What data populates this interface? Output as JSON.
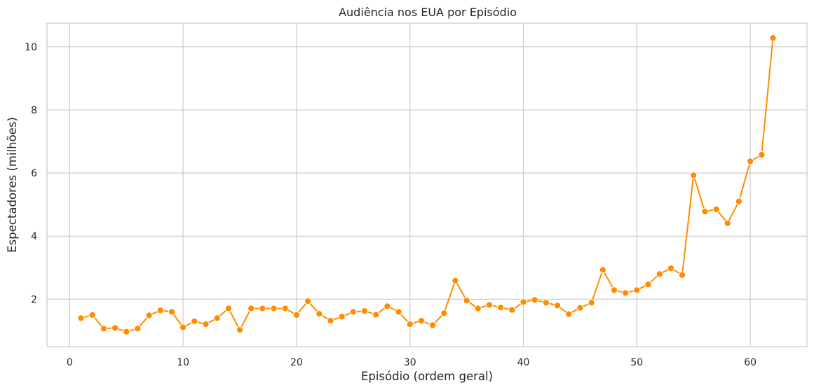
{
  "chart_data": {
    "type": "line",
    "title": "Audiência nos EUA por Episódio",
    "xlabel": "Episódio (ordem geral)",
    "ylabel": "Espectadores (milhões)",
    "xlim": [
      -2,
      65
    ],
    "ylim": [
      0.5,
      10.75
    ],
    "xticks": [
      0,
      10,
      20,
      30,
      40,
      50,
      60
    ],
    "yticks": [
      2,
      4,
      6,
      8,
      10
    ],
    "grid": true,
    "series_color": "#ff8c00",
    "x": [
      1,
      2,
      3,
      4,
      5,
      6,
      7,
      8,
      9,
      10,
      11,
      12,
      13,
      14,
      15,
      16,
      17,
      18,
      19,
      20,
      21,
      22,
      23,
      24,
      25,
      26,
      27,
      28,
      29,
      30,
      31,
      32,
      33,
      34,
      35,
      36,
      37,
      38,
      39,
      40,
      41,
      42,
      43,
      44,
      45,
      46,
      47,
      48,
      49,
      50,
      51,
      52,
      53,
      54,
      55,
      56,
      57,
      58,
      59,
      60,
      61,
      62
    ],
    "y": [
      1.4,
      1.5,
      1.07,
      1.09,
      0.97,
      1.07,
      1.49,
      1.65,
      1.6,
      1.11,
      1.3,
      1.21,
      1.4,
      1.71,
      1.03,
      1.71,
      1.71,
      1.71,
      1.71,
      1.5,
      1.94,
      1.54,
      1.32,
      1.45,
      1.6,
      1.63,
      1.51,
      1.78,
      1.6,
      1.21,
      1.32,
      1.18,
      1.56,
      2.59,
      1.96,
      1.71,
      1.82,
      1.74,
      1.66,
      1.91,
      1.98,
      1.89,
      1.8,
      1.53,
      1.73,
      1.89,
      2.93,
      2.29,
      2.2,
      2.29,
      2.47,
      2.8,
      2.98,
      2.77,
      5.93,
      4.78,
      4.85,
      4.41,
      5.1,
      6.37,
      6.58,
      10.28
    ]
  }
}
